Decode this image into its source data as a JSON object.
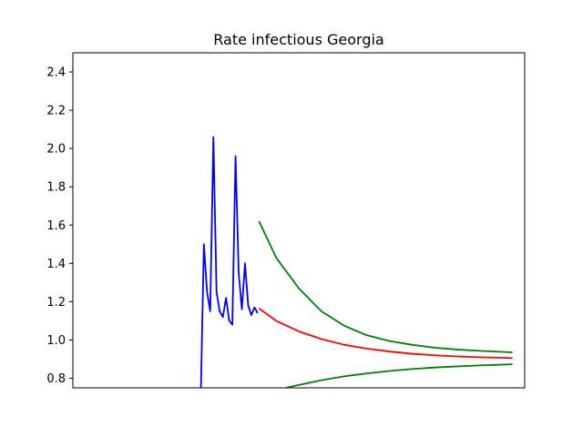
{
  "chart_data": {
    "type": "line",
    "title": "Rate infectious Georgia",
    "xlabel": "",
    "ylabel": "",
    "xlim": [
      0,
      100
    ],
    "ylim": [
      0.75,
      2.5
    ],
    "grid": false,
    "yticks": [
      "0.8",
      "1.0",
      "1.2",
      "1.4",
      "1.6",
      "1.8",
      "2.0",
      "2.2",
      "2.4"
    ],
    "series": [
      {
        "color": "#0000ff",
        "points": [
          [
            28.3,
            0.7
          ],
          [
            29.0,
            1.5
          ],
          [
            29.7,
            1.25
          ],
          [
            30.4,
            1.15
          ],
          [
            31.1,
            2.06
          ],
          [
            31.8,
            1.25
          ],
          [
            32.5,
            1.15
          ],
          [
            33.2,
            1.12
          ],
          [
            33.9,
            1.22
          ],
          [
            34.6,
            1.1
          ],
          [
            35.3,
            1.08
          ],
          [
            36.0,
            1.96
          ],
          [
            36.7,
            1.35
          ],
          [
            37.4,
            1.16
          ],
          [
            38.1,
            1.4
          ],
          [
            38.8,
            1.18
          ],
          [
            39.5,
            1.13
          ],
          [
            40.2,
            1.17
          ],
          [
            40.9,
            1.14
          ]
        ]
      },
      {
        "color": "#ff0000",
        "points": [
          [
            41.2,
            1.165
          ],
          [
            45,
            1.1
          ],
          [
            50,
            1.045
          ],
          [
            55,
            1.005
          ],
          [
            60,
            0.975
          ],
          [
            65,
            0.955
          ],
          [
            70,
            0.94
          ],
          [
            75,
            0.928
          ],
          [
            80,
            0.92
          ],
          [
            85,
            0.914
          ],
          [
            90,
            0.91
          ],
          [
            95,
            0.907
          ],
          [
            97.3,
            0.905
          ]
        ]
      },
      {
        "color": "#008000",
        "points": [
          [
            41.2,
            1.62
          ],
          [
            45,
            1.43
          ],
          [
            50,
            1.27
          ],
          [
            55,
            1.15
          ],
          [
            60,
            1.075
          ],
          [
            65,
            1.025
          ],
          [
            70,
            0.995
          ],
          [
            75,
            0.975
          ],
          [
            80,
            0.96
          ],
          [
            85,
            0.95
          ],
          [
            90,
            0.943
          ],
          [
            95,
            0.938
          ],
          [
            97.3,
            0.935
          ]
        ]
      },
      {
        "color": "#008000",
        "points": [
          [
            44.2,
            0.73
          ],
          [
            48,
            0.755
          ],
          [
            55,
            0.79
          ],
          [
            60,
            0.81
          ],
          [
            65,
            0.825
          ],
          [
            70,
            0.838
          ],
          [
            75,
            0.848
          ],
          [
            80,
            0.856
          ],
          [
            85,
            0.862
          ],
          [
            90,
            0.867
          ],
          [
            95,
            0.871
          ],
          [
            97.3,
            0.873
          ]
        ]
      }
    ]
  }
}
